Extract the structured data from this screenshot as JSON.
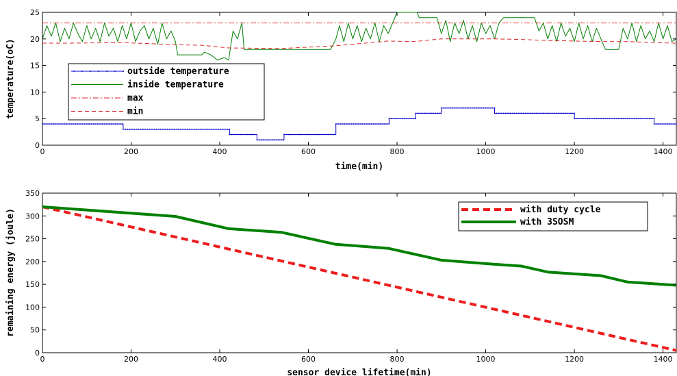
{
  "chart_data": [
    {
      "type": "line",
      "title": "",
      "xlabel": "time(min)",
      "ylabel": "temperature(oC)",
      "xlim": [
        0,
        1430
      ],
      "ylim": [
        0,
        25
      ],
      "xticks": [
        0,
        200,
        400,
        600,
        800,
        1000,
        1200,
        1400
      ],
      "yticks": [
        0,
        5,
        10,
        15,
        20,
        25
      ],
      "grid": false,
      "legend_position": "middle-left",
      "series": [
        {
          "name": "outside temperature",
          "color": "#0000cc",
          "style": "solid-dots",
          "x": [
            0,
            182,
            182,
            422,
            422,
            484,
            484,
            545,
            545,
            662,
            662,
            782,
            782,
            842,
            842,
            900,
            900,
            1020,
            1020,
            1200,
            1200,
            1380,
            1380,
            1430
          ],
          "y": [
            4,
            4,
            3,
            3,
            2,
            2,
            1,
            1,
            2,
            2,
            4,
            4,
            5,
            5,
            6,
            6,
            7,
            7,
            6,
            6,
            5,
            5,
            4,
            4
          ]
        },
        {
          "name": "inside temperature",
          "color": "#008000",
          "style": "solid",
          "x": [
            0,
            10,
            20,
            30,
            40,
            50,
            60,
            70,
            80,
            90,
            100,
            110,
            120,
            130,
            140,
            150,
            160,
            170,
            180,
            190,
            200,
            210,
            220,
            230,
            240,
            250,
            260,
            270,
            280,
            290,
            300,
            305,
            320,
            340,
            360,
            365,
            380,
            395,
            410,
            420,
            430,
            440,
            450,
            455,
            470,
            490,
            510,
            530,
            550,
            570,
            590,
            610,
            630,
            650,
            662,
            670,
            680,
            690,
            700,
            710,
            720,
            730,
            740,
            750,
            760,
            770,
            780,
            790,
            800,
            810,
            830,
            845,
            850,
            860,
            870,
            880,
            890,
            900,
            910,
            920,
            930,
            940,
            950,
            960,
            970,
            980,
            990,
            1000,
            1010,
            1020,
            1030,
            1040,
            1060,
            1080,
            1100,
            1110,
            1120,
            1130,
            1140,
            1150,
            1160,
            1170,
            1180,
            1190,
            1200,
            1210,
            1220,
            1230,
            1240,
            1250,
            1260,
            1270,
            1285,
            1300,
            1310,
            1320,
            1330,
            1340,
            1350,
            1360,
            1370,
            1380,
            1390,
            1400,
            1410,
            1420,
            1430
          ],
          "y": [
            20,
            22.5,
            20.5,
            23,
            19.5,
            22,
            20,
            23,
            21,
            19.5,
            22.5,
            20,
            22,
            19.5,
            23,
            20.5,
            22,
            19.5,
            22.5,
            20,
            23,
            19.5,
            21.5,
            22.5,
            20,
            22,
            19,
            23,
            20,
            21.5,
            19.5,
            17,
            17,
            17,
            17,
            17.5,
            17,
            16,
            16.5,
            16,
            21.5,
            20,
            23,
            18,
            18,
            18,
            18,
            18,
            18,
            18,
            18,
            18,
            18,
            18,
            20,
            22.5,
            19.5,
            23,
            20,
            22.5,
            19.5,
            22,
            20,
            23,
            19.5,
            22.5,
            21,
            23,
            25,
            25,
            25,
            25,
            24,
            24,
            24,
            24,
            24,
            21,
            23.5,
            19.5,
            23,
            21,
            23.5,
            20,
            22.5,
            19.5,
            23,
            21,
            22.5,
            20,
            23,
            24,
            24,
            24,
            24,
            24,
            21.5,
            23,
            20,
            22.5,
            19.5,
            23,
            20.5,
            22,
            19.5,
            23,
            20,
            22.5,
            19.5,
            22,
            20,
            18,
            18,
            18,
            22,
            20,
            23,
            19.5,
            22.5,
            20,
            21.5,
            19.5,
            23,
            20,
            22.5,
            19.5,
            20
          ]
        },
        {
          "name": "max",
          "color": "#dd2222",
          "style": "dashdot",
          "x": [
            0,
            1430
          ],
          "y": [
            23,
            23
          ]
        },
        {
          "name": "min",
          "color": "#dd2222",
          "style": "dashed",
          "x": [
            0,
            60,
            180,
            300,
            360,
            420,
            540,
            660,
            780,
            840,
            900,
            960,
            1020,
            1080,
            1140,
            1200,
            1260,
            1320,
            1380,
            1430
          ],
          "y": [
            19.2,
            19.2,
            19.3,
            18.9,
            18.8,
            18.3,
            18.2,
            18.7,
            19.6,
            19.5,
            20,
            20,
            20,
            19.9,
            19.7,
            19.6,
            19.5,
            19.5,
            19.3,
            19.2
          ]
        }
      ]
    },
    {
      "type": "line",
      "title": "",
      "xlabel": "sensor device lifetime(min)",
      "ylabel": "remaining energy (joule)",
      "xlim": [
        0,
        1430
      ],
      "ylim": [
        0,
        350
      ],
      "xticks": [
        0,
        200,
        400,
        600,
        800,
        1000,
        1200,
        1400
      ],
      "yticks": [
        0,
        50,
        100,
        150,
        200,
        250,
        300,
        350
      ],
      "grid": false,
      "legend_position": "top-right",
      "series": [
        {
          "name": "with duty cycle",
          "color": "#ee1c1c",
          "style": "dashed",
          "x": [
            0,
            1430
          ],
          "y": [
            320,
            5
          ]
        },
        {
          "name": "with 3SOSM",
          "color": "#008000",
          "style": "solid",
          "x": [
            0,
            300,
            420,
            540,
            660,
            780,
            900,
            1020,
            1080,
            1140,
            1260,
            1320,
            1430
          ],
          "y": [
            320,
            299,
            272,
            264,
            238,
            229,
            203,
            194,
            190,
            177,
            169,
            155,
            148
          ]
        }
      ]
    }
  ]
}
